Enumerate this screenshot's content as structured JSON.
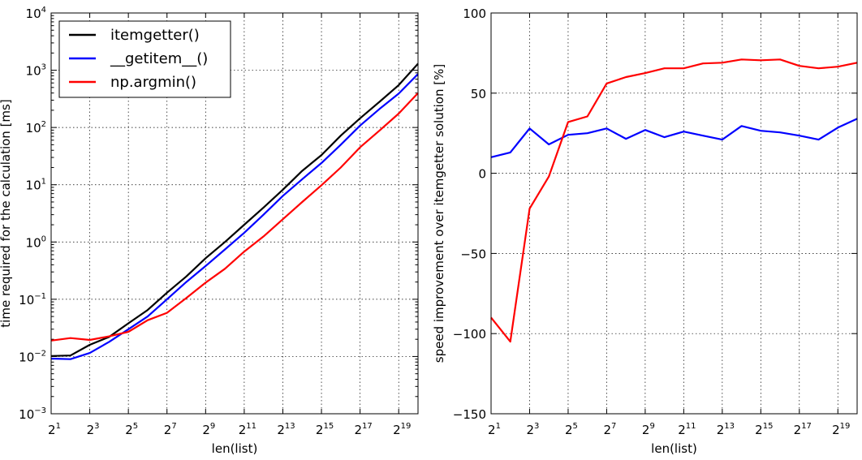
{
  "chart_data": [
    {
      "type": "line",
      "xlabel": "len(list)",
      "ylabel": "time required for the calculation [ms]",
      "yscale": "log",
      "xscale": "log2",
      "xlim": [
        2,
        1048576
      ],
      "ylim": [
        0.001,
        10000
      ],
      "grid": true,
      "legend": "top-left",
      "xticks": [
        {
          "base": "2",
          "exp": "1"
        },
        {
          "base": "2",
          "exp": "3"
        },
        {
          "base": "2",
          "exp": "5"
        },
        {
          "base": "2",
          "exp": "7"
        },
        {
          "base": "2",
          "exp": "9"
        },
        {
          "base": "2",
          "exp": "11"
        },
        {
          "base": "2",
          "exp": "13"
        },
        {
          "base": "2",
          "exp": "15"
        },
        {
          "base": "2",
          "exp": "17"
        },
        {
          "base": "2",
          "exp": "19"
        }
      ],
      "yticks": [
        {
          "base": "10",
          "exp": "4"
        },
        {
          "base": "10",
          "exp": "3"
        },
        {
          "base": "10",
          "exp": "2"
        },
        {
          "base": "10",
          "exp": "1"
        },
        {
          "base": "10",
          "exp": "0"
        },
        {
          "base": "10",
          "exp": "−1"
        },
        {
          "base": "10",
          "exp": "−2"
        },
        {
          "base": "10",
          "exp": "−3"
        }
      ],
      "x": [
        2,
        4,
        8,
        16,
        32,
        64,
        128,
        256,
        512,
        1024,
        2048,
        4096,
        8192,
        16384,
        32768,
        65536,
        131072,
        262144,
        524288,
        1048576
      ],
      "series": [
        {
          "name": "itemgetter()",
          "color": "#000000",
          "values": [
            0.0102,
            0.0104,
            0.016,
            0.022,
            0.038,
            0.065,
            0.13,
            0.25,
            0.52,
            1.0,
            2.0,
            4.0,
            8.2,
            17.5,
            33,
            72,
            145,
            280,
            550,
            1300
          ]
        },
        {
          "name": "__getitem__()",
          "color": "#0000ff",
          "values": [
            0.0092,
            0.009,
            0.0115,
            0.018,
            0.03,
            0.05,
            0.1,
            0.2,
            0.38,
            0.74,
            1.45,
            3.0,
            6.4,
            12.5,
            24,
            50,
            108,
            210,
            390,
            860
          ]
        },
        {
          "name": "np.argmin()",
          "color": "#ff0000",
          "values": [
            0.019,
            0.021,
            0.0195,
            0.0225,
            0.027,
            0.043,
            0.058,
            0.105,
            0.195,
            0.34,
            0.68,
            1.25,
            2.5,
            5.0,
            9.8,
            20,
            45,
            88,
            175,
            400
          ]
        }
      ]
    },
    {
      "type": "line",
      "xlabel": "len(list)",
      "ylabel": "speed improvement over itemgetter solution [%]",
      "xscale": "log2",
      "xlim": [
        2,
        1048576
      ],
      "ylim": [
        -150,
        100
      ],
      "grid": true,
      "xticks": [
        {
          "base": "2",
          "exp": "1"
        },
        {
          "base": "2",
          "exp": "3"
        },
        {
          "base": "2",
          "exp": "5"
        },
        {
          "base": "2",
          "exp": "7"
        },
        {
          "base": "2",
          "exp": "9"
        },
        {
          "base": "2",
          "exp": "11"
        },
        {
          "base": "2",
          "exp": "13"
        },
        {
          "base": "2",
          "exp": "15"
        },
        {
          "base": "2",
          "exp": "17"
        },
        {
          "base": "2",
          "exp": "19"
        }
      ],
      "yticks": [
        "100",
        "50",
        "0",
        "−50",
        "−100",
        "−150"
      ],
      "x": [
        2,
        4,
        8,
        16,
        32,
        64,
        128,
        256,
        512,
        1024,
        2048,
        4096,
        8192,
        16384,
        32768,
        65536,
        131072,
        262144,
        524288,
        1048576
      ],
      "series": [
        {
          "color": "#0000ff",
          "values": [
            10,
            13,
            28,
            18,
            24,
            25,
            28,
            21.5,
            27,
            22.5,
            26,
            23.5,
            21,
            29.5,
            26.5,
            25.5,
            23.5,
            21,
            28.5,
            34
          ]
        },
        {
          "color": "#ff0000",
          "values": [
            -90,
            -105,
            -22,
            -2,
            32,
            35.5,
            56,
            60,
            62.5,
            65.5,
            65.5,
            68.5,
            69,
            71,
            70.5,
            71,
            67,
            65.5,
            66.5,
            69
          ]
        }
      ]
    }
  ]
}
